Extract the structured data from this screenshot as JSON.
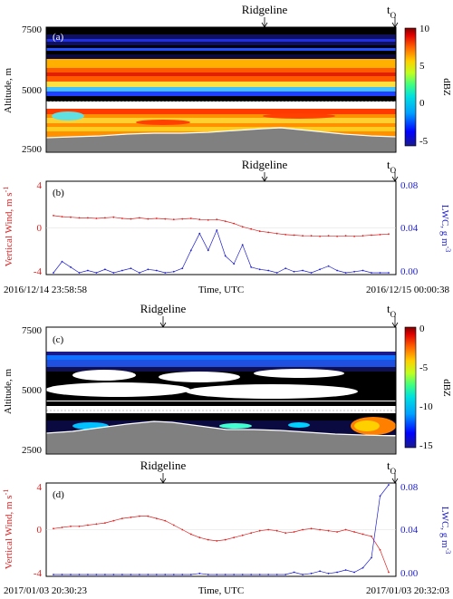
{
  "panel_a": {
    "label": "(a)",
    "ridgeline_label": "Ridgeline",
    "t0_label": "t",
    "t0_sub": "O",
    "ylabel": "Altitude, m",
    "yticks": [
      "7500",
      "5000",
      "2500"
    ],
    "cbar_label": "dBZ",
    "cbar_ticks": [
      "10",
      "5",
      "0",
      "-5"
    ]
  },
  "panel_b": {
    "label": "(b)",
    "ridgeline_label": "Ridgeline",
    "t0_label": "t",
    "t0_sub": "O",
    "ylabel_left": "Vertical Wind, m s",
    "ylabel_left_sup": "-1",
    "ylabel_right": "LWC, g m",
    "ylabel_right_sup": "-3",
    "yticks_left": [
      "4",
      "0",
      "-4"
    ],
    "yticks_right": [
      "0.08",
      "0.04",
      "0.00"
    ],
    "xlabel": "Time, UTC",
    "x_start": "2016/12/14 23:58:58",
    "x_end": "2016/12/15 00:00:38"
  },
  "panel_c": {
    "label": "(c)",
    "ridgeline_label": "Ridgeline",
    "t0_label": "t",
    "t0_sub": "O",
    "ylabel": "Altitude, m",
    "yticks": [
      "7500",
      "5000",
      "2500"
    ],
    "cbar_label": "dBZ",
    "cbar_ticks": [
      "0",
      "-5",
      "-10",
      "-15"
    ]
  },
  "panel_d": {
    "label": "(d)",
    "ridgeline_label": "Ridgeline",
    "t0_label": "t",
    "t0_sub": "O",
    "ylabel_left": "Vertical Wind, m s",
    "ylabel_left_sup": "-1",
    "ylabel_right": "LWC, g m",
    "ylabel_right_sup": "-3",
    "yticks_left": [
      "4",
      "0",
      "-4"
    ],
    "yticks_right": [
      "0.08",
      "0.04",
      "0.00"
    ],
    "xlabel": "Time, UTC",
    "x_start": "2017/01/03 20:30:23",
    "x_end": "2017/01/03 20:32:03"
  },
  "colors": {
    "wind": "#e02020",
    "lwc": "#2020d0",
    "terrain": "#808080"
  },
  "chart_data": [
    {
      "type": "heatmap",
      "panel": "a",
      "ylabel": "Altitude, m",
      "ylim": [
        2500,
        7500
      ],
      "colorbar": {
        "label": "dBZ",
        "range": [
          -6,
          10
        ]
      },
      "layers": [
        {
          "alt_range": [
            6900,
            7500
          ],
          "dbz": -6
        },
        {
          "alt_range": [
            6500,
            6900
          ],
          "dbz": -4
        },
        {
          "alt_range": [
            5700,
            6500
          ],
          "dbz": 6
        },
        {
          "alt_range": [
            5200,
            5700
          ],
          "dbz": 3
        },
        {
          "alt_range": [
            4900,
            5200
          ],
          "dbz": 0
        },
        {
          "alt_range": [
            4500,
            4900
          ],
          "dbz": 7
        },
        {
          "alt_range": [
            3200,
            4500
          ],
          "dbz": 5
        }
      ],
      "terrain_top_m": [
        3100,
        3150,
        3200,
        3250,
        3300,
        3350,
        3400,
        3500,
        3500,
        3400,
        3300,
        3200,
        3150,
        3100
      ]
    },
    {
      "type": "line",
      "panel": "b",
      "x_start": "2016/12/14 23:58:58",
      "x_end": "2016/12/15 00:00:38",
      "ylim_left": [
        -4,
        4
      ],
      "ylim_right": [
        0.0,
        0.08
      ],
      "series": [
        {
          "axis": "left",
          "values": [
            1.1,
            1.0,
            0.95,
            0.9,
            0.9,
            0.85,
            0.9,
            0.95,
            0.85,
            0.8,
            0.9,
            0.8,
            0.85,
            0.8,
            0.75,
            0.8,
            0.85,
            0.75,
            0.7,
            0.75,
            0.6,
            0.4,
            0.1,
            -0.1,
            -0.3,
            -0.4,
            -0.5,
            -0.6,
            -0.65,
            -0.7,
            -0.7,
            -0.75,
            -0.7,
            -0.75,
            -0.7,
            -0.75,
            -0.7,
            -0.65,
            -0.6,
            -0.55
          ]
        },
        {
          "axis": "right",
          "values": [
            0.0,
            0.01,
            0.005,
            0.0,
            0.002,
            0.0,
            0.003,
            0.0,
            0.002,
            0.004,
            0.0,
            0.003,
            0.002,
            0.0,
            0.001,
            0.004,
            0.02,
            0.035,
            0.02,
            0.038,
            0.015,
            0.008,
            0.025,
            0.005,
            0.003,
            0.002,
            0.0,
            0.004,
            0.001,
            0.002,
            0.0,
            0.003,
            0.006,
            0.002,
            0.0,
            0.001,
            0.002,
            0.0,
            0.0,
            0.0
          ]
        }
      ]
    },
    {
      "type": "heatmap",
      "panel": "c",
      "ylabel": "Altitude, m",
      "ylim": [
        2500,
        7500
      ],
      "colorbar": {
        "label": "dBZ",
        "range": [
          -15,
          0
        ]
      },
      "layers": [
        {
          "alt_range": [
            6100,
            6600
          ],
          "dbz": -11
        },
        {
          "alt_range": [
            5800,
            6100
          ],
          "dbz": -12
        },
        {
          "alt_range": [
            5100,
            5800
          ],
          "dbz": -15
        },
        {
          "alt_range": [
            4300,
            4600
          ],
          "dbz": -15
        },
        {
          "alt_range": [
            3300,
            4000
          ],
          "dbz": -14
        }
      ],
      "terrain_top_m": [
        3200,
        3350,
        3500,
        3700,
        3800,
        3700,
        3500,
        3400,
        3450,
        3500,
        3450,
        3350,
        3300,
        3250
      ]
    },
    {
      "type": "line",
      "panel": "d",
      "x_start": "2017/01/03 20:30:23",
      "x_end": "2017/01/03 20:32:03",
      "ylim_left": [
        -4,
        4
      ],
      "ylim_right": [
        0.0,
        0.08
      ],
      "series": [
        {
          "axis": "left",
          "values": [
            0.1,
            0.2,
            0.3,
            0.3,
            0.4,
            0.5,
            0.6,
            0.8,
            1.0,
            1.1,
            1.2,
            1.2,
            1.0,
            0.8,
            0.4,
            0.0,
            -0.4,
            -0.7,
            -0.9,
            -1.0,
            -0.9,
            -0.7,
            -0.5,
            -0.3,
            -0.1,
            0.0,
            -0.1,
            -0.3,
            -0.2,
            0.0,
            0.1,
            0.0,
            -0.1,
            -0.2,
            0.0,
            -0.2,
            -0.4,
            -0.6,
            -1.8,
            -3.8
          ]
        },
        {
          "axis": "right",
          "values": [
            0.0,
            0.0,
            0.0,
            0.0,
            0.0,
            0.0,
            0.0,
            0.0,
            0.0,
            0.0,
            0.0,
            0.0,
            0.0,
            0.0,
            0.0,
            0.0,
            0.0,
            0.001,
            0.0,
            0.0,
            0.0,
            0.0,
            0.0,
            0.0,
            0.0,
            0.0,
            0.0,
            0.0,
            0.002,
            0.0,
            0.001,
            0.003,
            0.001,
            0.002,
            0.004,
            0.002,
            0.006,
            0.015,
            0.07,
            0.08
          ]
        }
      ]
    }
  ]
}
